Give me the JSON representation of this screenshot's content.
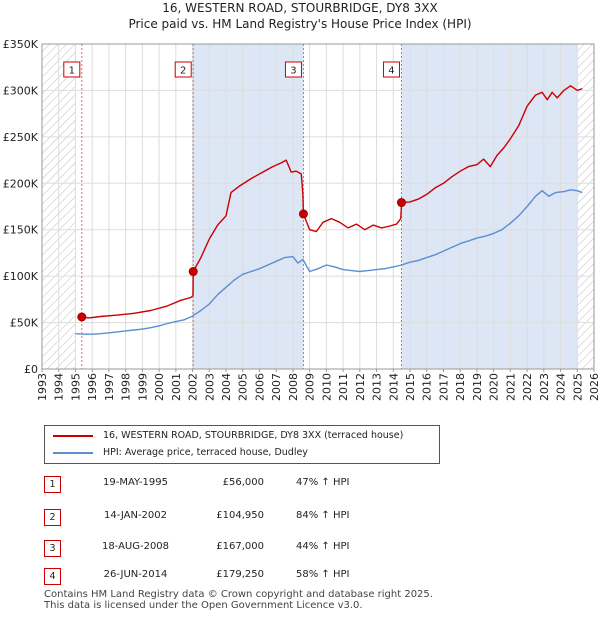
{
  "title_line1": "16, WESTERN ROAD, STOURBRIDGE, DY8 3XX",
  "title_line2": "Price paid vs. HM Land Registry's House Price Index (HPI)",
  "chart_data": {
    "type": "line",
    "title": "Price paid vs. HM Land Registry's House Price Index (HPI)",
    "xlabel": "",
    "ylabel": "",
    "xlim": [
      1993.0,
      2026.0
    ],
    "ylim": [
      0,
      350000
    ],
    "y_ticks": [
      {
        "value": 0,
        "label": "£0"
      },
      {
        "value": 50000,
        "label": "£50K"
      },
      {
        "value": 100000,
        "label": "£100K"
      },
      {
        "value": 150000,
        "label": "£150K"
      },
      {
        "value": 200000,
        "label": "£200K"
      },
      {
        "value": 250000,
        "label": "£250K"
      },
      {
        "value": 300000,
        "label": "£300K"
      },
      {
        "value": 350000,
        "label": "£350K"
      }
    ],
    "x_ticks": [
      "1993",
      "1994",
      "1995",
      "1996",
      "1997",
      "1998",
      "1999",
      "2000",
      "2001",
      "2002",
      "2003",
      "2004",
      "2005",
      "2006",
      "2007",
      "2008",
      "2009",
      "2010",
      "2011",
      "2012",
      "2013",
      "2014",
      "2015",
      "2016",
      "2017",
      "2018",
      "2019",
      "2020",
      "2021",
      "2022",
      "2023",
      "2024",
      "2025",
      "2026"
    ],
    "hatched_ranges": [
      [
        1993.0,
        1995.0
      ],
      [
        2025.0,
        2026.0
      ]
    ],
    "shaded_ranges": [
      [
        2002.04,
        2008.63
      ],
      [
        2014.49,
        2026.0
      ]
    ],
    "series": [
      {
        "name": "16, WESTERN ROAD, STOURBRIDGE, DY8 3XX (terraced house)",
        "color": "#cc0000",
        "points": [
          [
            1995.38,
            56000
          ],
          [
            1995.8,
            55000
          ],
          [
            1996.5,
            56500
          ],
          [
            1997.5,
            58000
          ],
          [
            1998.5,
            60000
          ],
          [
            1999.5,
            63000
          ],
          [
            2000.5,
            68000
          ],
          [
            2001.3,
            74000
          ],
          [
            2001.9,
            77000
          ],
          [
            2002.03,
            79000
          ],
          [
            2002.04,
            104950
          ],
          [
            2002.5,
            120000
          ],
          [
            2003.0,
            140000
          ],
          [
            2003.5,
            155000
          ],
          [
            2004.0,
            165000
          ],
          [
            2004.3,
            190000
          ],
          [
            2004.8,
            197000
          ],
          [
            2005.5,
            205000
          ],
          [
            2006.2,
            212000
          ],
          [
            2006.8,
            218000
          ],
          [
            2007.3,
            222000
          ],
          [
            2007.6,
            225000
          ],
          [
            2007.9,
            212000
          ],
          [
            2008.2,
            213000
          ],
          [
            2008.5,
            210000
          ],
          [
            2008.6,
            188000
          ],
          [
            2008.63,
            167000
          ],
          [
            2009.0,
            150000
          ],
          [
            2009.4,
            148000
          ],
          [
            2009.8,
            158000
          ],
          [
            2010.3,
            162000
          ],
          [
            2010.8,
            158000
          ],
          [
            2011.3,
            152000
          ],
          [
            2011.8,
            156000
          ],
          [
            2012.3,
            150000
          ],
          [
            2012.8,
            155000
          ],
          [
            2013.3,
            152000
          ],
          [
            2013.8,
            154000
          ],
          [
            2014.2,
            156000
          ],
          [
            2014.45,
            162000
          ],
          [
            2014.49,
            179250
          ],
          [
            2015.0,
            180000
          ],
          [
            2015.5,
            183000
          ],
          [
            2016.0,
            188000
          ],
          [
            2016.5,
            195000
          ],
          [
            2017.0,
            200000
          ],
          [
            2017.5,
            207000
          ],
          [
            2018.0,
            213000
          ],
          [
            2018.5,
            218000
          ],
          [
            2019.0,
            220000
          ],
          [
            2019.4,
            226000
          ],
          [
            2019.8,
            218000
          ],
          [
            2020.2,
            230000
          ],
          [
            2020.6,
            238000
          ],
          [
            2021.0,
            248000
          ],
          [
            2021.5,
            262000
          ],
          [
            2022.0,
            283000
          ],
          [
            2022.5,
            295000
          ],
          [
            2022.9,
            298000
          ],
          [
            2023.2,
            290000
          ],
          [
            2023.5,
            298000
          ],
          [
            2023.8,
            292000
          ],
          [
            2024.2,
            300000
          ],
          [
            2024.6,
            305000
          ],
          [
            2025.0,
            300000
          ],
          [
            2025.3,
            302000
          ]
        ]
      },
      {
        "name": "HPI: Average price, terraced house, Dudley",
        "color": "#5b8fd1",
        "points": [
          [
            1995.0,
            38000
          ],
          [
            1995.5,
            37500
          ],
          [
            1996.0,
            37500
          ],
          [
            1996.5,
            38000
          ],
          [
            1997.0,
            39000
          ],
          [
            1997.5,
            40000
          ],
          [
            1998.0,
            41000
          ],
          [
            1998.5,
            42000
          ],
          [
            1999.0,
            43000
          ],
          [
            1999.5,
            44500
          ],
          [
            2000.0,
            46500
          ],
          [
            2000.5,
            49000
          ],
          [
            2001.0,
            51000
          ],
          [
            2001.5,
            53000
          ],
          [
            2002.0,
            57000
          ],
          [
            2002.5,
            63000
          ],
          [
            2003.0,
            70000
          ],
          [
            2003.5,
            80000
          ],
          [
            2004.0,
            88000
          ],
          [
            2004.5,
            96000
          ],
          [
            2005.0,
            102000
          ],
          [
            2005.5,
            105000
          ],
          [
            2006.0,
            108000
          ],
          [
            2006.5,
            112000
          ],
          [
            2007.0,
            116000
          ],
          [
            2007.5,
            120000
          ],
          [
            2008.0,
            121000
          ],
          [
            2008.3,
            114000
          ],
          [
            2008.6,
            118000
          ],
          [
            2009.0,
            105000
          ],
          [
            2009.5,
            108000
          ],
          [
            2010.0,
            112000
          ],
          [
            2010.5,
            110000
          ],
          [
            2011.0,
            107000
          ],
          [
            2011.5,
            106000
          ],
          [
            2012.0,
            105000
          ],
          [
            2012.5,
            106000
          ],
          [
            2013.0,
            107000
          ],
          [
            2013.5,
            108000
          ],
          [
            2014.0,
            110000
          ],
          [
            2014.5,
            112000
          ],
          [
            2015.0,
            115000
          ],
          [
            2015.5,
            117000
          ],
          [
            2016.0,
            120000
          ],
          [
            2016.5,
            123000
          ],
          [
            2017.0,
            127000
          ],
          [
            2017.5,
            131000
          ],
          [
            2018.0,
            135000
          ],
          [
            2018.5,
            138000
          ],
          [
            2019.0,
            141000
          ],
          [
            2019.5,
            143000
          ],
          [
            2020.0,
            146000
          ],
          [
            2020.5,
            150000
          ],
          [
            2021.0,
            157000
          ],
          [
            2021.5,
            165000
          ],
          [
            2022.0,
            175000
          ],
          [
            2022.5,
            186000
          ],
          [
            2022.9,
            192000
          ],
          [
            2023.3,
            186000
          ],
          [
            2023.7,
            190000
          ],
          [
            2024.2,
            191000
          ],
          [
            2024.6,
            193000
          ],
          [
            2025.0,
            192000
          ],
          [
            2025.3,
            190000
          ]
        ]
      }
    ],
    "annotations": [
      {
        "label": "1",
        "x": 1995.38,
        "y": 56000
      },
      {
        "label": "2",
        "x": 2002.04,
        "y": 104950
      },
      {
        "label": "3",
        "x": 2008.63,
        "y": 167000
      },
      {
        "label": "4",
        "x": 2014.49,
        "y": 179250
      }
    ]
  },
  "legend": {
    "property_label": "16, WESTERN ROAD, STOURBRIDGE, DY8 3XX (terraced house)",
    "hpi_label": "HPI: Average price, terraced house, Dudley"
  },
  "transactions": [
    {
      "num": "1",
      "date": "19-MAY-1995",
      "price": "£56,000",
      "hpi": "47% ↑ HPI"
    },
    {
      "num": "2",
      "date": "14-JAN-2002",
      "price": "£104,950",
      "hpi": "84% ↑ HPI"
    },
    {
      "num": "3",
      "date": "18-AUG-2008",
      "price": "£167,000",
      "hpi": "44% ↑ HPI"
    },
    {
      "num": "4",
      "date": "26-JUN-2014",
      "price": "£179,250",
      "hpi": "58% ↑ HPI"
    }
  ],
  "footer": "Contains HM Land Registry data © Crown copyright and database right 2025.\nThis data is licensed under the Open Government Licence v3.0."
}
